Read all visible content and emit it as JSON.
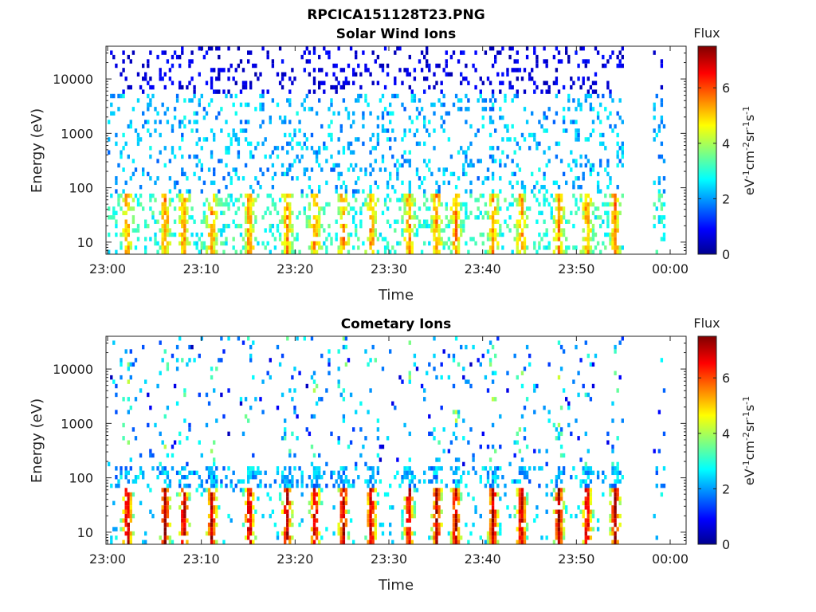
{
  "figure": {
    "title": "RPCICA151128T23.PNG"
  },
  "chart_data": [
    {
      "type": "heatmap",
      "title": "Solar Wind Ions",
      "xlabel": "Time",
      "ylabel": "Energy (eV)",
      "x_ticks": [
        "23:00",
        "23:10",
        "23:20",
        "23:30",
        "23:40",
        "23:50",
        "00:00"
      ],
      "x_range": [
        "23:00",
        "00:00"
      ],
      "y_scale": "log",
      "y_ticks": [
        "10",
        "100",
        "1000",
        "10000"
      ],
      "y_range": [
        6,
        40000
      ],
      "colorbar": {
        "label": "Flux",
        "units": "eV-1cm-2sr-1s-1",
        "ticks": [
          "0",
          "2",
          "4",
          "6"
        ],
        "range": [
          0,
          7.5
        ],
        "colormap": "jet",
        "colors": [
          "#00008f",
          "#0000ff",
          "#00ffff",
          "#ffff00",
          "#ff0000",
          "#800000"
        ]
      },
      "data_gap": [
        "23:55",
        "23:58"
      ],
      "enhancement_times": [
        "23:02",
        "23:06",
        "23:08",
        "23:11",
        "23:15",
        "23:19",
        "23:22",
        "23:25",
        "23:28",
        "23:32",
        "23:35",
        "23:37",
        "23:41",
        "23:44",
        "23:48",
        "23:51",
        "23:54"
      ],
      "background_level": "sparse speckle 100 eV – 30 keV"
    },
    {
      "type": "heatmap",
      "title": "Cometary Ions",
      "xlabel": "Time",
      "ylabel": "Energy (eV)",
      "x_ticks": [
        "23:00",
        "23:10",
        "23:20",
        "23:30",
        "23:40",
        "23:50",
        "00:00"
      ],
      "x_range": [
        "23:00",
        "00:00"
      ],
      "y_scale": "log",
      "y_ticks": [
        "10",
        "100",
        "1000",
        "10000"
      ],
      "y_range": [
        6,
        40000
      ],
      "colorbar": {
        "label": "Flux",
        "units": "eV-1cm-2sr-1s-1",
        "ticks": [
          "0",
          "2",
          "4",
          "6"
        ],
        "range": [
          0,
          7.5
        ],
        "colormap": "jet",
        "colors": [
          "#00008f",
          "#0000ff",
          "#00ffff",
          "#ffff00",
          "#ff0000",
          "#800000"
        ]
      },
      "data_gap": [
        "23:55",
        "23:58"
      ],
      "enhancement_times": [
        "23:02",
        "23:06",
        "23:08",
        "23:11",
        "23:15",
        "23:19",
        "23:22",
        "23:25",
        "23:28",
        "23:32",
        "23:35",
        "23:37",
        "23:41",
        "23:44",
        "23:48",
        "23:51",
        "23:54"
      ],
      "peak_flux_energy_eV": [
        15,
        40
      ]
    }
  ]
}
